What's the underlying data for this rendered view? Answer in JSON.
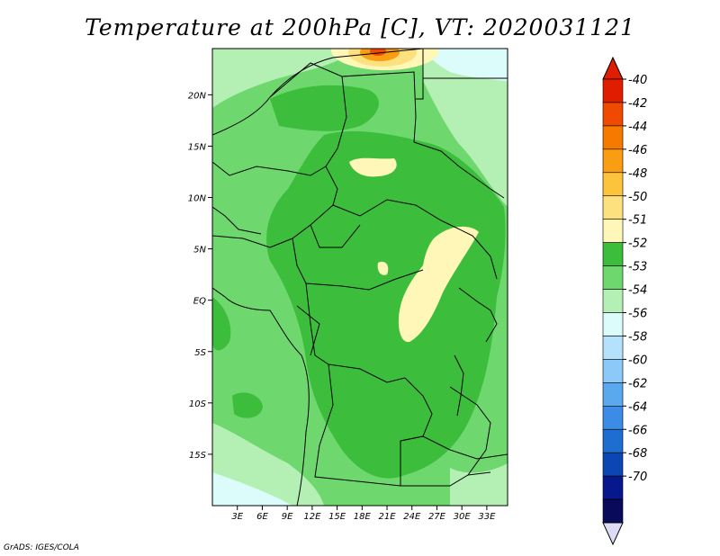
{
  "title": "Temperature at 200hPa [C], VT: 2020031121",
  "credit": "GrADS: IGES/COLA",
  "map": {
    "lon_range": [
      0,
      35.5
    ],
    "lat_range": [
      -20,
      24.5
    ],
    "lat_ticks": [
      {
        "value": 20,
        "label": "20N"
      },
      {
        "value": 15,
        "label": "15N"
      },
      {
        "value": 10,
        "label": "10N"
      },
      {
        "value": 5,
        "label": "5N"
      },
      {
        "value": 0,
        "label": "EQ"
      },
      {
        "value": -5,
        "label": "5S"
      },
      {
        "value": -10,
        "label": "10S"
      },
      {
        "value": -15,
        "label": "15S"
      }
    ],
    "lon_ticks": [
      {
        "value": 3,
        "label": "3E"
      },
      {
        "value": 6,
        "label": "6E"
      },
      {
        "value": 9,
        "label": "9E"
      },
      {
        "value": 12,
        "label": "12E"
      },
      {
        "value": 15,
        "label": "15E"
      },
      {
        "value": 18,
        "label": "18E"
      },
      {
        "value": 21,
        "label": "21E"
      },
      {
        "value": 24,
        "label": "24E"
      },
      {
        "value": 27,
        "label": "27E"
      },
      {
        "value": 30,
        "label": "30E"
      },
      {
        "value": 33,
        "label": "33E"
      }
    ]
  },
  "colorbar": {
    "levels": [
      "-40",
      "-42",
      "-44",
      "-46",
      "-48",
      "-50",
      "-51",
      "-52",
      "-53",
      "-54",
      "-56",
      "-58",
      "-60",
      "-62",
      "-64",
      "-66",
      "-68",
      "-70"
    ],
    "colors": [
      "#e11d00",
      "#f04a00",
      "#f77a00",
      "#f99d12",
      "#fcc43c",
      "#fde17f",
      "#fff7b8",
      "#3cbe3c",
      "#6ed86e",
      "#b4f0b4",
      "#dcfcfc",
      "#b4e1fc",
      "#8cc8f8",
      "#5aa8ee",
      "#3c8ce6",
      "#1e6ed2",
      "#0c46b4",
      "#06188c",
      "#0a0a5a"
    ],
    "end_colors": {
      "top": "#e11d00",
      "bottom": "#dcdcf5"
    }
  }
}
